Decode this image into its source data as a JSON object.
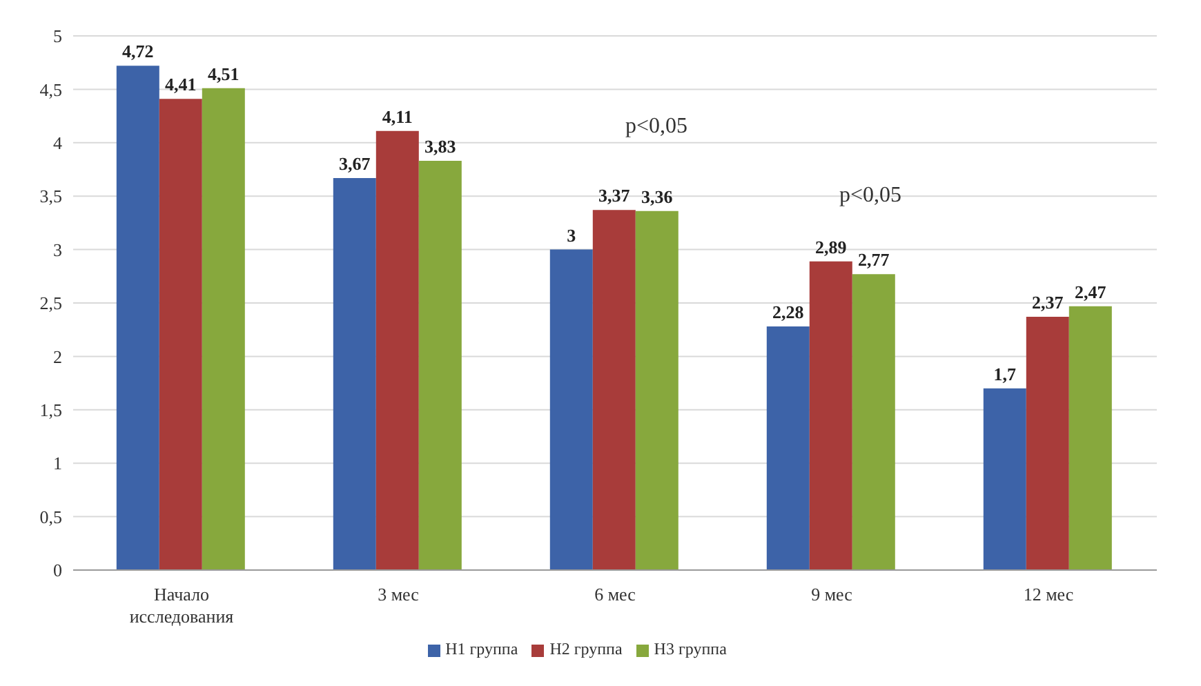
{
  "chart_data": {
    "type": "bar",
    "categories": [
      "Начало исследования",
      "3 мес",
      "6 мес",
      "9 мес",
      "12 мес"
    ],
    "series": [
      {
        "name": "Н1 группа",
        "color": "#3d63a8",
        "values": [
          4.72,
          3.67,
          3,
          2.28,
          1.7
        ],
        "value_labels": [
          "4,72",
          "3,67",
          "3",
          "2,28",
          "1,7"
        ]
      },
      {
        "name": "Н2 группа",
        "color": "#a83c3a",
        "values": [
          4.41,
          4.11,
          3.37,
          2.89,
          2.37
        ],
        "value_labels": [
          "4,41",
          "4,11",
          "3,37",
          "2,89",
          "2,37"
        ]
      },
      {
        "name": "Н3 группа",
        "color": "#87a83d",
        "values": [
          4.51,
          3.83,
          3.36,
          2.77,
          2.47
        ],
        "value_labels": [
          "4,51",
          "3,83",
          "3,36",
          "2,77",
          "2,47"
        ]
      }
    ],
    "ylim": [
      0,
      5
    ],
    "yticks": [
      0,
      {
        "value": 0.5,
        "label": "0,5"
      },
      1,
      {
        "value": 1.5,
        "label": "1,5"
      },
      2,
      {
        "value": 2.5,
        "label": "2,5"
      },
      3,
      {
        "value": 3.5,
        "label": "3,5"
      },
      4,
      {
        "value": 4.5,
        "label": "4,5"
      },
      5
    ],
    "annotations": [
      "p<0,05",
      "p<0,05"
    ],
    "grid": "y",
    "legend": "bottom"
  }
}
